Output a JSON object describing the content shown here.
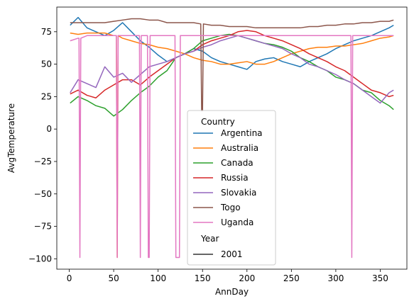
{
  "chart_data": {
    "type": "line",
    "xlabel": "AnnDay",
    "ylabel": "AvgTemperature",
    "xlim": [
      -14,
      380
    ],
    "ylim": [
      -108,
      94
    ],
    "xticks": [
      0,
      50,
      100,
      150,
      200,
      250,
      300,
      350
    ],
    "yticks": [
      -100,
      -75,
      -50,
      -25,
      0,
      25,
      50,
      75
    ],
    "legend": {
      "placement": "lower-center",
      "hue_title": "Country",
      "style_title": "Year",
      "style_entries": [
        "2001"
      ]
    },
    "series": [
      {
        "name": "Argentina",
        "color": "#1f77b4",
        "x": [
          1,
          10,
          20,
          30,
          40,
          50,
          60,
          70,
          80,
          90,
          100,
          110,
          120,
          130,
          140,
          150,
          160,
          170,
          180,
          190,
          200,
          210,
          220,
          230,
          240,
          250,
          260,
          270,
          280,
          290,
          300,
          310,
          320,
          330,
          340,
          350,
          360,
          365
        ],
        "y": [
          80,
          86,
          78,
          75,
          72,
          76,
          82,
          75,
          68,
          63,
          57,
          52,
          55,
          58,
          62,
          60,
          55,
          52,
          50,
          48,
          46,
          52,
          54,
          55,
          52,
          50,
          48,
          52,
          55,
          58,
          62,
          65,
          68,
          70,
          72,
          75,
          78,
          80
        ]
      },
      {
        "name": "Australia",
        "color": "#ff7f0e",
        "x": [
          1,
          10,
          20,
          30,
          40,
          50,
          53,
          54,
          55,
          60,
          70,
          80,
          90,
          100,
          110,
          120,
          130,
          140,
          150,
          160,
          170,
          180,
          190,
          200,
          210,
          220,
          230,
          240,
          250,
          260,
          270,
          280,
          290,
          300,
          310,
          320,
          330,
          340,
          350,
          360,
          365
        ],
        "y": [
          74,
          73,
          74,
          74,
          74,
          72,
          72,
          -99,
          72,
          70,
          68,
          66,
          65,
          63,
          62,
          60,
          58,
          55,
          53,
          52,
          50,
          50,
          51,
          52,
          50,
          50,
          52,
          55,
          58,
          60,
          62,
          63,
          63,
          64,
          64,
          65,
          66,
          68,
          70,
          71,
          72
        ]
      },
      {
        "name": "Canada",
        "color": "#2ca02c",
        "x": [
          1,
          10,
          20,
          30,
          40,
          50,
          60,
          70,
          80,
          90,
          100,
          110,
          120,
          130,
          140,
          150,
          160,
          170,
          180,
          190,
          200,
          210,
          220,
          230,
          240,
          250,
          260,
          270,
          280,
          290,
          300,
          310,
          320,
          330,
          340,
          350,
          360,
          365
        ],
        "y": [
          20,
          25,
          22,
          18,
          16,
          10,
          15,
          22,
          28,
          33,
          40,
          45,
          55,
          58,
          62,
          68,
          70,
          72,
          73,
          72,
          70,
          68,
          66,
          65,
          63,
          60,
          55,
          52,
          48,
          45,
          40,
          38,
          35,
          30,
          28,
          22,
          18,
          15
        ]
      },
      {
        "name": "Russia",
        "color": "#d62728",
        "x": [
          1,
          10,
          20,
          30,
          40,
          50,
          60,
          70,
          80,
          90,
          100,
          110,
          120,
          130,
          140,
          150,
          160,
          170,
          180,
          190,
          200,
          210,
          220,
          230,
          240,
          250,
          260,
          270,
          280,
          290,
          300,
          310,
          320,
          330,
          340,
          350,
          360,
          365
        ],
        "y": [
          27,
          30,
          26,
          24,
          30,
          34,
          38,
          38,
          34,
          40,
          45,
          50,
          55,
          58,
          60,
          65,
          68,
          70,
          72,
          75,
          76,
          75,
          72,
          70,
          68,
          65,
          62,
          58,
          55,
          52,
          48,
          45,
          40,
          35,
          30,
          28,
          25,
          26
        ]
      },
      {
        "name": "Slovakia",
        "color": "#9467bd",
        "x": [
          1,
          10,
          20,
          30,
          40,
          50,
          60,
          70,
          80,
          90,
          100,
          110,
          120,
          130,
          140,
          150,
          160,
          170,
          180,
          190,
          200,
          210,
          220,
          230,
          240,
          250,
          260,
          270,
          280,
          290,
          300,
          310,
          320,
          330,
          340,
          350,
          360,
          365
        ],
        "y": [
          28,
          38,
          35,
          32,
          48,
          40,
          43,
          36,
          42,
          48,
          50,
          52,
          55,
          58,
          60,
          63,
          65,
          68,
          70,
          72,
          70,
          68,
          66,
          64,
          62,
          58,
          55,
          50,
          48,
          45,
          42,
          38,
          35,
          30,
          25,
          20,
          28,
          30
        ]
      },
      {
        "name": "Togo",
        "color": "#8c564b",
        "x": [
          1,
          10,
          20,
          30,
          40,
          50,
          60,
          70,
          80,
          90,
          100,
          110,
          120,
          130,
          140,
          148,
          149,
          150,
          151,
          160,
          170,
          180,
          190,
          200,
          210,
          220,
          230,
          240,
          250,
          260,
          270,
          280,
          290,
          300,
          310,
          320,
          330,
          340,
          350,
          360,
          365
        ],
        "y": [
          82,
          82,
          82,
          82,
          82,
          83,
          84,
          85,
          85,
          84,
          84,
          82,
          82,
          82,
          82,
          81,
          14,
          14,
          81,
          80,
          80,
          79,
          79,
          79,
          78,
          78,
          78,
          78,
          78,
          78,
          79,
          79,
          80,
          80,
          81,
          81,
          82,
          82,
          83,
          83,
          84
        ]
      },
      {
        "name": "Uganda",
        "color": "#e377c2",
        "x": [
          1,
          10,
          11,
          12,
          13,
          20,
          30,
          40,
          50,
          53,
          54,
          55,
          60,
          70,
          79,
          80,
          81,
          88,
          89,
          90,
          91,
          92,
          100,
          110,
          119,
          120,
          121,
          123,
          124,
          125,
          130,
          140,
          150,
          160,
          170,
          180,
          190,
          200,
          210,
          220,
          230,
          240,
          250,
          260,
          270,
          280,
          290,
          300,
          310,
          317,
          318,
          319,
          330,
          340,
          350,
          360,
          365
        ],
        "y": [
          68,
          70,
          70,
          -99,
          70,
          72,
          72,
          72,
          72,
          72,
          -99,
          72,
          72,
          72,
          72,
          -99,
          72,
          72,
          -99,
          -99,
          72,
          72,
          72,
          72,
          72,
          -99,
          -99,
          -99,
          -99,
          72,
          72,
          72,
          72,
          72,
          72,
          72,
          72,
          72,
          72,
          72,
          72,
          72,
          72,
          72,
          72,
          72,
          72,
          72,
          72,
          72,
          -99,
          72,
          72,
          72,
          72,
          72,
          72
        ]
      }
    ]
  }
}
